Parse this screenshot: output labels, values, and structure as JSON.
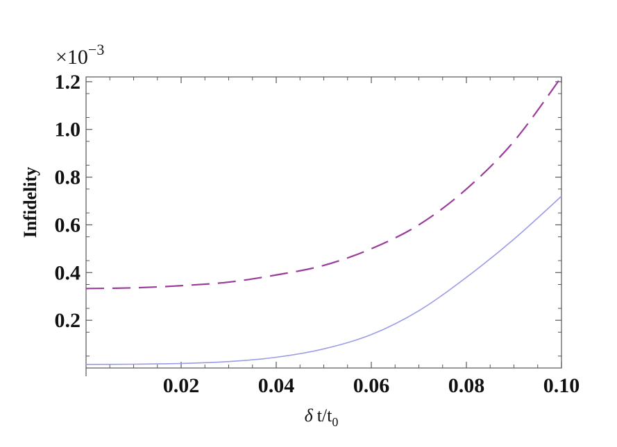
{
  "chart_data": {
    "type": "line",
    "title": "",
    "xlabel_symbol": "δ",
    "xlabel_text": "t/t",
    "xlabel_sub": "0",
    "ylabel": "Infidelity",
    "y_scale_prefix": "×10",
    "y_scale_exponent": "−3",
    "xlim": [
      0,
      0.1
    ],
    "ylim": [
      0,
      1.22
    ],
    "x_ticks": [
      0.02,
      0.04,
      0.06,
      0.08,
      0.1
    ],
    "x_tick_labels": [
      "0.02",
      "0.04",
      "0.06",
      "0.08",
      "0.10"
    ],
    "y_ticks": [
      0.2,
      0.4,
      0.6,
      0.8,
      1.0,
      1.2
    ],
    "y_tick_labels": [
      "0.2",
      "0.4",
      "0.6",
      "0.8",
      "1.0",
      "1.2"
    ],
    "grid": false,
    "series": [
      {
        "style": "dashed",
        "color": "#9a3a9a",
        "x": [
          0,
          0.01,
          0.02,
          0.03,
          0.04,
          0.05,
          0.06,
          0.07,
          0.08,
          0.09,
          0.1
        ],
        "y": [
          0.333,
          0.336,
          0.345,
          0.36,
          0.39,
          0.43,
          0.5,
          0.6,
          0.75,
          0.95,
          1.22
        ]
      },
      {
        "style": "solid",
        "color": "#9b9be6",
        "x": [
          0,
          0.01,
          0.02,
          0.03,
          0.04,
          0.05,
          0.06,
          0.07,
          0.08,
          0.09,
          0.1
        ],
        "y": [
          0.015,
          0.016,
          0.019,
          0.027,
          0.045,
          0.08,
          0.14,
          0.24,
          0.38,
          0.54,
          0.72
        ]
      }
    ]
  }
}
